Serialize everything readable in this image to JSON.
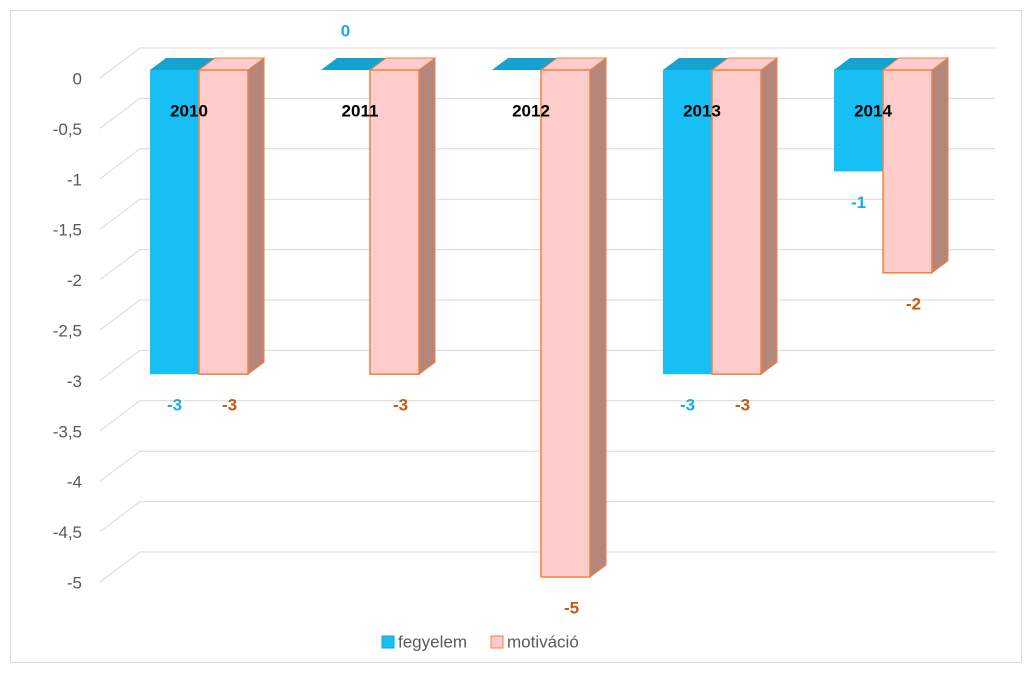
{
  "chart_data": {
    "type": "bar3d",
    "categories": [
      "2010",
      "2011",
      "2012",
      "2013",
      "2014"
    ],
    "series": [
      {
        "name": "fegyelem",
        "color": "#17bff5",
        "values": [
          -3,
          0,
          0,
          -3,
          -1
        ],
        "value_labels": [
          "-3",
          "0",
          null,
          "-3",
          "-1"
        ],
        "label_color": "#1aaee0"
      },
      {
        "name": "motiváció",
        "color": "#ffcccc",
        "edge_color": "#f08040",
        "values": [
          -3,
          -3,
          -5,
          -3,
          -2
        ],
        "label_color": "#c55a11"
      }
    ],
    "ylim": [
      -5,
      0
    ],
    "yticks": [
      0,
      {
        "value": -0.5,
        "label": "-0,5"
      },
      -1,
      {
        "value": -1.5,
        "label": "-1,5"
      },
      -2,
      {
        "value": -2.5,
        "label": "-2,5"
      },
      -3,
      {
        "value": -3.5,
        "label": "-3,5"
      },
      -4,
      {
        "value": -4.5,
        "label": "-4,5"
      },
      -5
    ],
    "grid": true,
    "legend": "bottom"
  }
}
